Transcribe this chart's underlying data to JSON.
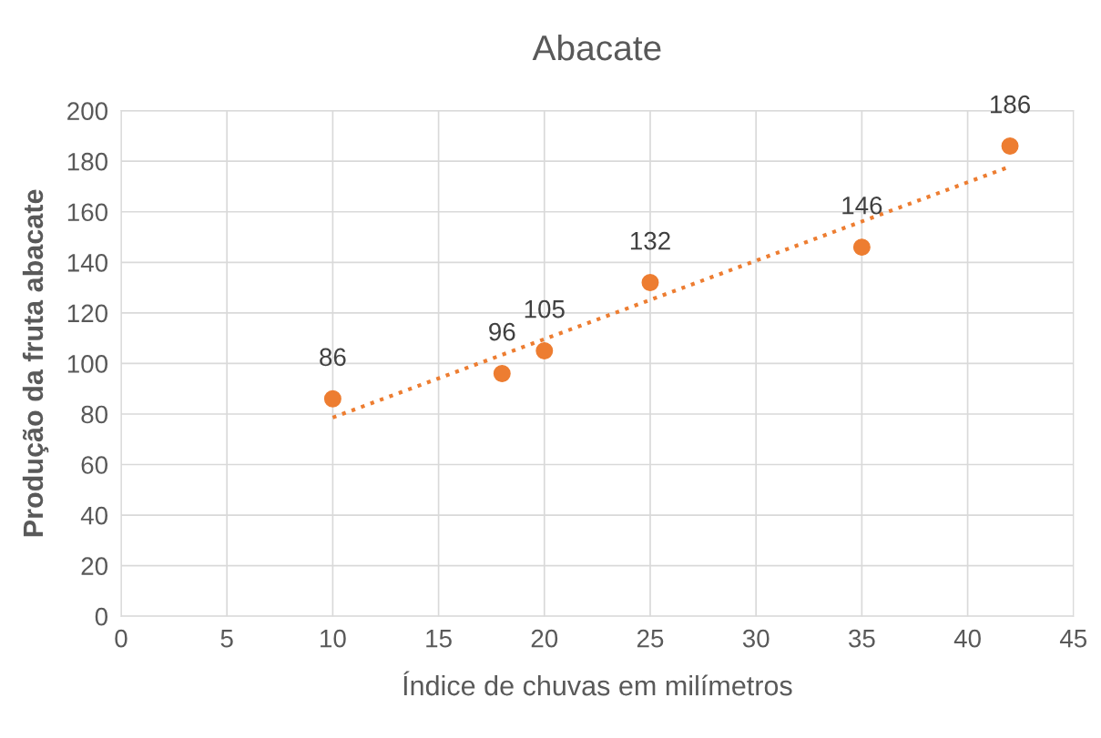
{
  "chart_data": {
    "type": "scatter",
    "title": "Abacate",
    "xlabel": "Índice de chuvas em milímetros",
    "ylabel": "Produção da fruta abacate",
    "series": [
      {
        "color": "#ed7d31",
        "x": [
          10,
          18,
          20,
          25,
          35,
          42
        ],
        "values": [
          86,
          96,
          105,
          132,
          146,
          186
        ],
        "value_labels": [
          "86",
          "96",
          "105",
          "132",
          "146",
          "186"
        ],
        "marker": "circle"
      },
      {
        "type": "line",
        "color": "#ed7d31",
        "x": [
          10,
          42
        ],
        "values": [
          78.6,
          177.9
        ],
        "line_style": "dotted",
        "marker": "none"
      }
    ],
    "xlim": [
      0,
      45
    ],
    "xticks": [
      0,
      5,
      10,
      15,
      20,
      25,
      30,
      35,
      40,
      45
    ],
    "ylim": [
      0,
      200
    ],
    "yticks": [
      0,
      20,
      40,
      60,
      80,
      100,
      120,
      140,
      160,
      180,
      200
    ],
    "grid": true
  }
}
